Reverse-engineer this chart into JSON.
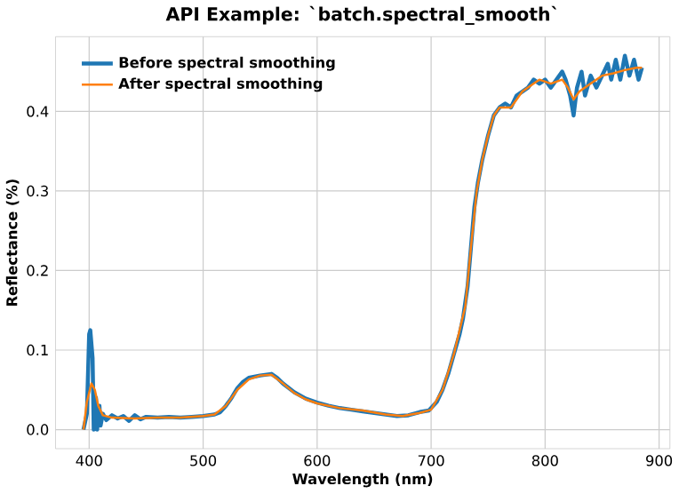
{
  "chart_data": {
    "type": "line",
    "title": "API Example: `batch.spectral_smooth`",
    "xlabel": "Wavelength (nm)",
    "ylabel": "Reflectance (%)",
    "xlim": [
      370.5,
      909.5
    ],
    "ylim": [
      -0.024,
      0.494
    ],
    "xticks": [
      400,
      500,
      600,
      700,
      800,
      900
    ],
    "yticks": [
      {
        "value": 0,
        "label": "0.0"
      },
      {
        "value": 0.1,
        "label": "0.1"
      },
      {
        "value": 0.2,
        "label": "0.2"
      },
      {
        "value": 0.3,
        "label": "0.3"
      },
      {
        "value": 0.4,
        "label": "0.4"
      }
    ],
    "grid": true,
    "legend": "top left",
    "series": [
      {
        "name": "Before spectral smoothing",
        "color": "#1f77b4",
        "x": [
          395,
          398,
          400,
          401,
          403,
          404,
          406,
          407,
          409,
          410,
          412,
          415,
          420,
          425,
          430,
          435,
          440,
          445,
          450,
          460,
          470,
          480,
          490,
          500,
          510,
          515,
          520,
          525,
          530,
          535,
          540,
          550,
          560,
          565,
          570,
          580,
          590,
          600,
          610,
          620,
          630,
          640,
          650,
          660,
          670,
          680,
          690,
          698,
          705,
          710,
          715,
          720,
          725,
          728,
          732,
          735,
          738,
          741,
          745,
          750,
          755,
          760,
          765,
          770,
          775,
          780,
          785,
          790,
          795,
          800,
          805,
          810,
          815,
          818,
          822,
          825,
          828,
          832,
          835,
          840,
          845,
          850,
          855,
          858,
          862,
          866,
          870,
          874,
          878,
          882,
          885
        ],
        "values": [
          0.0,
          0.02,
          0.12,
          0.125,
          0.09,
          0.0,
          0.04,
          0.0,
          0.03,
          0.005,
          0.02,
          0.012,
          0.018,
          0.014,
          0.017,
          0.011,
          0.018,
          0.013,
          0.016,
          0.015,
          0.016,
          0.015,
          0.016,
          0.017,
          0.019,
          0.022,
          0.03,
          0.04,
          0.052,
          0.06,
          0.065,
          0.068,
          0.07,
          0.065,
          0.058,
          0.047,
          0.039,
          0.034,
          0.03,
          0.027,
          0.025,
          0.023,
          0.021,
          0.019,
          0.017,
          0.018,
          0.022,
          0.024,
          0.035,
          0.05,
          0.07,
          0.095,
          0.12,
          0.14,
          0.18,
          0.23,
          0.28,
          0.31,
          0.34,
          0.37,
          0.395,
          0.405,
          0.41,
          0.405,
          0.42,
          0.425,
          0.43,
          0.44,
          0.435,
          0.44,
          0.43,
          0.44,
          0.45,
          0.44,
          0.42,
          0.395,
          0.43,
          0.45,
          0.42,
          0.445,
          0.43,
          0.445,
          0.46,
          0.44,
          0.465,
          0.44,
          0.47,
          0.445,
          0.465,
          0.44,
          0.455
        ]
      },
      {
        "name": "After spectral smoothing",
        "color": "#ff7f0e",
        "x": [
          395,
          398,
          402,
          405,
          408,
          412,
          420,
          440,
          460,
          480,
          500,
          510,
          520,
          530,
          540,
          550,
          560,
          570,
          580,
          590,
          600,
          620,
          640,
          660,
          675,
          690,
          700,
          710,
          720,
          730,
          735,
          740,
          745,
          750,
          755,
          760,
          770,
          780,
          790,
          795,
          805,
          815,
          820,
          825,
          830,
          840,
          850,
          860,
          870,
          880,
          885
        ],
        "values": [
          0.0,
          0.035,
          0.058,
          0.05,
          0.03,
          0.018,
          0.015,
          0.014,
          0.015,
          0.015,
          0.017,
          0.019,
          0.03,
          0.05,
          0.063,
          0.068,
          0.069,
          0.058,
          0.046,
          0.038,
          0.033,
          0.027,
          0.024,
          0.019,
          0.017,
          0.021,
          0.025,
          0.05,
          0.095,
          0.155,
          0.23,
          0.3,
          0.34,
          0.37,
          0.395,
          0.405,
          0.405,
          0.425,
          0.435,
          0.44,
          0.435,
          0.44,
          0.43,
          0.415,
          0.425,
          0.435,
          0.445,
          0.448,
          0.452,
          0.455,
          0.455
        ]
      }
    ]
  }
}
